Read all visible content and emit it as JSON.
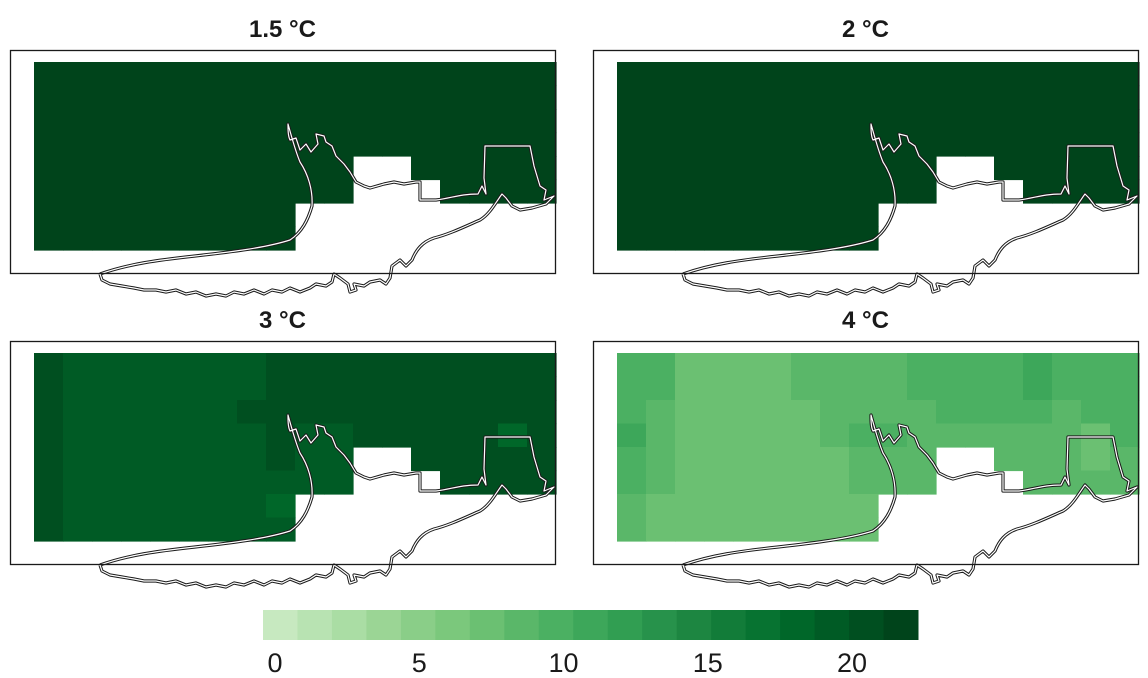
{
  "chart_data": {
    "type": "heatmap",
    "panels": [
      {
        "title": "1.5 °C",
        "rows": [
          [
            21,
            21,
            21,
            21,
            21,
            21,
            21,
            21,
            21,
            21,
            21,
            21,
            21,
            21,
            21,
            21,
            21,
            21
          ],
          [
            21,
            21,
            21,
            21,
            21,
            21,
            21,
            21,
            21,
            21,
            21,
            21,
            21,
            21,
            21,
            21,
            21,
            21
          ],
          [
            21,
            21,
            21,
            21,
            21,
            21,
            21,
            21,
            21,
            21,
            21,
            21,
            21,
            21,
            21,
            21,
            21,
            21
          ],
          [
            21,
            21,
            21,
            21,
            21,
            21,
            21,
            21,
            21,
            21,
            21,
            21,
            21,
            21,
            21,
            21,
            21,
            21
          ],
          [
            21,
            21,
            21,
            21,
            21,
            21,
            21,
            21,
            21,
            21,
            21,
            null,
            null,
            21,
            21,
            21,
            21,
            21
          ],
          [
            21,
            21,
            21,
            21,
            21,
            21,
            21,
            21,
            21,
            21,
            21,
            null,
            null,
            null,
            21,
            21,
            21,
            21
          ],
          [
            21,
            21,
            21,
            21,
            21,
            21,
            21,
            21,
            21,
            null,
            null,
            null,
            null,
            null,
            null,
            null,
            null,
            null
          ],
          [
            21,
            21,
            21,
            21,
            21,
            21,
            21,
            21,
            21,
            null,
            null,
            null,
            null,
            null,
            null,
            null,
            null,
            null
          ]
        ]
      },
      {
        "title": "2 °C",
        "rows": [
          [
            21,
            21,
            21,
            21,
            21,
            21,
            21,
            21,
            21,
            21,
            21,
            21,
            21,
            21,
            21,
            21,
            21,
            21
          ],
          [
            21,
            21,
            21,
            21,
            21,
            21,
            21,
            21,
            21,
            21,
            21,
            21,
            21,
            21,
            21,
            21,
            21,
            21
          ],
          [
            21,
            21,
            21,
            21,
            21,
            21,
            21,
            21,
            21,
            21,
            21,
            21,
            21,
            21,
            21,
            21,
            21,
            21
          ],
          [
            21,
            21,
            21,
            21,
            21,
            21,
            21,
            21,
            21,
            21,
            21,
            21,
            21,
            21,
            21,
            21,
            21,
            21
          ],
          [
            21,
            21,
            21,
            21,
            21,
            21,
            21,
            21,
            21,
            21,
            21,
            null,
            null,
            21,
            21,
            21,
            21,
            21
          ],
          [
            21,
            21,
            21,
            21,
            21,
            21,
            21,
            21,
            21,
            21,
            21,
            null,
            null,
            null,
            21,
            21,
            21,
            21
          ],
          [
            21,
            21,
            21,
            21,
            21,
            21,
            21,
            21,
            21,
            null,
            null,
            null,
            null,
            null,
            null,
            null,
            null,
            null
          ],
          [
            21,
            21,
            21,
            21,
            21,
            21,
            21,
            21,
            21,
            null,
            null,
            null,
            null,
            null,
            null,
            null,
            null,
            null
          ]
        ]
      },
      {
        "title": "3 °C",
        "rows": [
          [
            20,
            19,
            19,
            19,
            19,
            19,
            19,
            19,
            20,
            20,
            20,
            20,
            20,
            20,
            20,
            20,
            20,
            20
          ],
          [
            20,
            19,
            19,
            19,
            19,
            19,
            19,
            19,
            20,
            20,
            20,
            20,
            20,
            20,
            20,
            20,
            20,
            20
          ],
          [
            20,
            19,
            19,
            19,
            19,
            19,
            19,
            20,
            20,
            20,
            20,
            20,
            20,
            20,
            20,
            20,
            20,
            20
          ],
          [
            20,
            19,
            19,
            19,
            19,
            19,
            19,
            19,
            20,
            19,
            19,
            20,
            20,
            20,
            20,
            20,
            18,
            20
          ],
          [
            20,
            19,
            19,
            19,
            19,
            19,
            19,
            19,
            20,
            19,
            19,
            null,
            null,
            20,
            20,
            20,
            20,
            20
          ],
          [
            20,
            19,
            19,
            19,
            19,
            19,
            19,
            19,
            19,
            19,
            19,
            null,
            null,
            null,
            20,
            20,
            20,
            20
          ],
          [
            20,
            19,
            19,
            19,
            19,
            19,
            19,
            19,
            18,
            null,
            null,
            null,
            null,
            null,
            null,
            null,
            null,
            null
          ],
          [
            20,
            19,
            19,
            19,
            19,
            19,
            19,
            19,
            19,
            null,
            null,
            null,
            null,
            null,
            null,
            null,
            null,
            null
          ]
        ]
      },
      {
        "title": "4 °C",
        "rows": [
          [
            10,
            10,
            8,
            8,
            8,
            8,
            9,
            9,
            9,
            9,
            10,
            10,
            10,
            10,
            11,
            10,
            10,
            10
          ],
          [
            10,
            10,
            8,
            8,
            8,
            8,
            9,
            9,
            9,
            9,
            10,
            10,
            10,
            10,
            11,
            10,
            10,
            10
          ],
          [
            10,
            9,
            8,
            8,
            8,
            8,
            8,
            9,
            9,
            9,
            9,
            10,
            10,
            10,
            10,
            9,
            10,
            10
          ],
          [
            11,
            9,
            8,
            8,
            8,
            8,
            8,
            9,
            10,
            10,
            9,
            9,
            9,
            9,
            9,
            9,
            7,
            10
          ],
          [
            10,
            9,
            8,
            8,
            8,
            8,
            8,
            8,
            9,
            9,
            9,
            null,
            null,
            9,
            9,
            9,
            8,
            9
          ],
          [
            10,
            9,
            8,
            8,
            8,
            8,
            8,
            8,
            9,
            9,
            9,
            null,
            null,
            null,
            9,
            9,
            9,
            9
          ],
          [
            9,
            8,
            8,
            8,
            8,
            8,
            8,
            8,
            7,
            null,
            null,
            null,
            null,
            null,
            null,
            null,
            null,
            null
          ],
          [
            9,
            8,
            8,
            8,
            8,
            8,
            8,
            8,
            7,
            null,
            null,
            null,
            null,
            null,
            null,
            null,
            null,
            null
          ]
        ]
      }
    ],
    "colorbar": {
      "range": [
        0,
        22
      ],
      "ticks": [
        "0",
        "5",
        "10",
        "15",
        "20"
      ],
      "tick_values": [
        0,
        5,
        10,
        15,
        20
      ],
      "colors": [
        "#c7e9c0",
        "#b8e3b2",
        "#aadda4",
        "#9bd595",
        "#8ace88",
        "#7bc87c",
        "#6bc072",
        "#5ab769",
        "#4bb062",
        "#3da75a",
        "#319e52",
        "#27924b",
        "#1d8641",
        "#127c39",
        "#077331",
        "#006729",
        "#005b25",
        "#004f20",
        "#00441b"
      ]
    }
  }
}
